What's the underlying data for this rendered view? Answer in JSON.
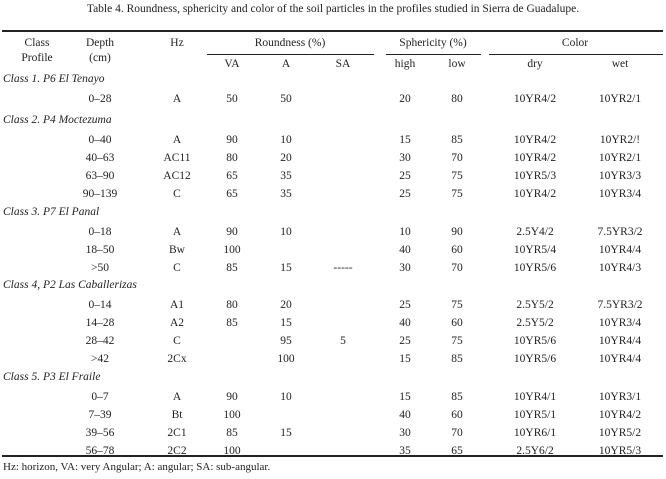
{
  "title": "Table 4. Roundness, sphericity and color of the soil particles in the profiles studied in Sierra de Guadalupe.",
  "headers": {
    "class": "Class",
    "profile": "Profile",
    "depth": "Depth",
    "depth_unit": "(cm)",
    "hz": "Hz",
    "roundness": "Roundness (%)",
    "va": "VA",
    "a": "A",
    "sa": "SA",
    "sphericity": "Sphericity (%)",
    "high": "high",
    "low": "low",
    "color": "Color",
    "dry": "dry",
    "wet": "wet"
  },
  "groups": [
    {
      "label": "Class 1. P6 El Tenayo",
      "rows": [
        [
          "0–28",
          "A",
          "50",
          "50",
          "",
          "20",
          "80",
          "10YR4/2",
          "10YR2/1"
        ]
      ]
    },
    {
      "label": "Class 2. P4 Moctezuma",
      "rows": [
        [
          "0–40",
          "A",
          "90",
          "10",
          "",
          "15",
          "85",
          "10YR4/2",
          "10YR2/!"
        ],
        [
          "40–63",
          "AC11",
          "80",
          "20",
          "",
          "30",
          "70",
          "10YR4/2",
          "10YR2/1"
        ],
        [
          "63–90",
          "AC12",
          "65",
          "35",
          "",
          "25",
          "75",
          "10YR5/3",
          "10YR3/3"
        ],
        [
          "90–139",
          "C",
          "65",
          "35",
          "",
          "25",
          "75",
          "10YR4/2",
          "10YR3/4"
        ]
      ]
    },
    {
      "label": "Class 3. P7 El Panal",
      "rows": [
        [
          "0–18",
          "A",
          "90",
          "10",
          "",
          "10",
          "90",
          "2.5Y4/2",
          "7.5YR3/2"
        ],
        [
          "18–50",
          "Bw",
          "100",
          "",
          "",
          "40",
          "60",
          "10YR5/4",
          "10YR4/4"
        ],
        [
          ">50",
          "C",
          "85",
          "15",
          "-----",
          "30",
          "70",
          "10YR5/6",
          "10YR4/3"
        ]
      ]
    },
    {
      "label": "Class 4, P2 Las Caballerizas",
      "rows": [
        [
          "0–14",
          "A1",
          "80",
          "20",
          "",
          "25",
          "75",
          "2.5Y5/2",
          "7.5YR3/2"
        ],
        [
          "14–28",
          "A2",
          "85",
          "15",
          "",
          "40",
          "60",
          "2.5Y5/2",
          "10YR3/4"
        ],
        [
          "28–42",
          "C",
          "",
          "95",
          "5",
          "25",
          "75",
          "10YR5/6",
          "10YR4/4"
        ],
        [
          ">42",
          "2Cx",
          "",
          "100",
          "",
          "15",
          "85",
          "10YR5/6",
          "10YR4/4"
        ]
      ]
    },
    {
      "label": "Class 5. P3 El Fraile",
      "rows": [
        [
          "0–7",
          "A",
          "90",
          "10",
          "",
          "15",
          "85",
          "10YR4/1",
          "10YR3/1"
        ],
        [
          "7–39",
          "Bt",
          "100",
          "",
          "",
          "40",
          "60",
          "10YR5/1",
          "10YR4/2"
        ],
        [
          "39–56",
          "2C1",
          "85",
          "15",
          "",
          "30",
          "70",
          "10YR6/1",
          "10YR5/2"
        ],
        [
          "56–78",
          "2C2",
          "100",
          "",
          "",
          "35",
          "65",
          "2.5Y6/2",
          "10YR5/3"
        ]
      ]
    }
  ],
  "footnote": "Hz: horizon, VA: very Angular; A: angular; SA: sub-angular."
}
